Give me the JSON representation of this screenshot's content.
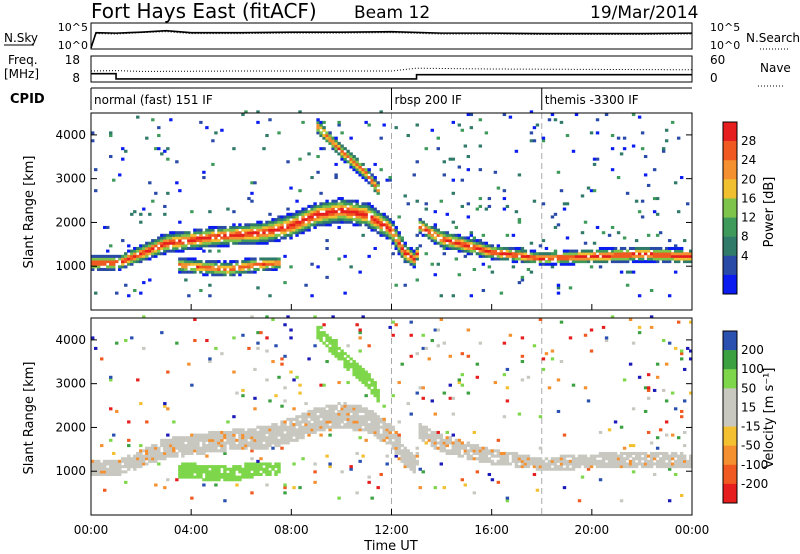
{
  "header": {
    "station": "Fort Hays East (fitACF)",
    "beam": "Beam 12",
    "date": "19/Mar/2014"
  },
  "colors": {
    "power_scale": [
      "#0a1cf0",
      "#2a4aa8",
      "#2f7a68",
      "#3e9a5a",
      "#7ec44a",
      "#f0c030",
      "#f59030",
      "#f05a20",
      "#e61e1e"
    ],
    "velocity_scale": [
      "#e61e1e",
      "#f05a20",
      "#f59030",
      "#f2c030",
      "#c8c8c0",
      "#c8c8c0",
      "#7ed64a",
      "#3aa040",
      "#2a50b0",
      "#1a1ab8"
    ],
    "dashed_line": "#aaaaaa"
  },
  "chart_data": [
    {
      "type": "line",
      "panel": "noise",
      "left_label": "N.Sky",
      "right_label": "N.Search",
      "left_ticks": [
        "10^5",
        "10^0"
      ],
      "right_ticks": [
        "10^5",
        "10^0"
      ],
      "series": [
        {
          "name": "N.Sky",
          "style": "solid",
          "x": [
            0,
            0.2,
            1,
            2,
            3,
            4,
            6,
            8,
            10,
            12,
            14,
            16,
            18,
            20,
            22,
            24
          ],
          "y": [
            0,
            3.2,
            3.1,
            3.3,
            3.6,
            3.2,
            3.2,
            3.3,
            3.3,
            3.4,
            3.1,
            3.1,
            3.0,
            3.0,
            3.0,
            3.1
          ]
        },
        {
          "name": "N.Search",
          "style": "dotted",
          "x": [
            0,
            0.2,
            1,
            2,
            3,
            4,
            6,
            8,
            10,
            12,
            14,
            16,
            18,
            20,
            22,
            24
          ],
          "y": [
            0,
            3.0,
            2.9,
            3.2,
            3.4,
            3.0,
            3.0,
            3.1,
            3.1,
            3.2,
            2.9,
            2.9,
            2.8,
            2.8,
            2.8,
            2.9
          ]
        }
      ]
    },
    {
      "type": "line",
      "panel": "frequency",
      "left_label_line1": "Freq.",
      "left_label_line2": "[MHz]",
      "right_label": "Nave",
      "left_ticks": [
        "18",
        "8"
      ],
      "right_ticks": [
        "60",
        "0"
      ],
      "series": [
        {
          "name": "Freq.",
          "style": "solid",
          "x": [
            0,
            1,
            1,
            13,
            13,
            24
          ],
          "y": [
            12.3,
            12.3,
            9.2,
            9.2,
            11.7,
            11.7
          ]
        },
        {
          "name": "Nave",
          "style": "dotted",
          "x": [
            0,
            1,
            2,
            6,
            12,
            13,
            16,
            20,
            24
          ],
          "y": [
            25,
            26,
            24,
            25,
            25,
            32,
            30,
            29,
            28
          ]
        }
      ]
    },
    {
      "type": "table",
      "panel": "cpid",
      "label": "CPID",
      "segments": [
        {
          "start": 0,
          "end": 12,
          "text": "normal (fast) 151 IF"
        },
        {
          "start": 12,
          "end": 18,
          "text": "rbsp 200 IF"
        },
        {
          "start": 18,
          "end": 24,
          "text": "themis -3300 IF"
        }
      ]
    },
    {
      "type": "heatmap",
      "panel": "power",
      "xlim": [
        0,
        24
      ],
      "ylim": [
        0,
        4500
      ],
      "ylabel": "Slant Range [km]",
      "yticks": [
        1000,
        2000,
        3000,
        4000
      ],
      "colorbar_label": "Power [dB]",
      "colorbar_ticks": [
        "28",
        "24",
        "20",
        "16",
        "12",
        "8",
        "4"
      ],
      "colorbar_range": [
        0,
        30
      ],
      "features": [
        {
          "name": "main band",
          "x": [
            0,
            1,
            1.1,
            3,
            5,
            7,
            8,
            9,
            10,
            11,
            12,
            12.5,
            13,
            13.1,
            14,
            16,
            18,
            20,
            22,
            24
          ],
          "center": [
            1050,
            1050,
            1050,
            1500,
            1650,
            1750,
            1900,
            2150,
            2250,
            2150,
            1800,
            1300,
            1100,
            1900,
            1600,
            1300,
            1150,
            1200,
            1250,
            1200
          ],
          "width": [
            300,
            300,
            300,
            400,
            400,
            450,
            500,
            500,
            500,
            500,
            450,
            400,
            300,
            300,
            350,
            300,
            250,
            300,
            300,
            300
          ]
        },
        {
          "name": "lower patch",
          "x": [
            3.5,
            4.5,
            5.5,
            6.5,
            7.5
          ],
          "center": [
            1000,
            950,
            900,
            1000,
            1050
          ],
          "width": [
            300,
            300,
            300,
            300,
            250
          ]
        },
        {
          "name": "upper echoes",
          "x": [
            9,
            10,
            11,
            11.5
          ],
          "center": [
            4200,
            3600,
            3100,
            2700
          ],
          "width": [
            300,
            300,
            300,
            300
          ]
        }
      ]
    },
    {
      "type": "heatmap",
      "panel": "velocity",
      "xlim": [
        0,
        24
      ],
      "ylim": [
        0,
        4500
      ],
      "ylabel": "Slant Range [km]",
      "yticks": [
        1000,
        2000,
        3000,
        4000
      ],
      "colorbar_label": "Velocity [m s⁻¹]",
      "colorbar_ticks": [
        "200",
        "100",
        "50",
        "15",
        "-15",
        "-50",
        "-100",
        "-200"
      ],
      "colorbar_range": [
        -250,
        250
      ],
      "xlabel": "Time UT",
      "xticks": [
        "00:00",
        "04:00",
        "08:00",
        "12:00",
        "16:00",
        "20:00",
        "00:00"
      ],
      "features": [
        {
          "name": "main band",
          "dominant_velocity": 0
        },
        {
          "name": "lower patch",
          "dominant_velocity": 60
        },
        {
          "name": "upper echoes",
          "dominant_velocity": 60
        }
      ]
    }
  ]
}
